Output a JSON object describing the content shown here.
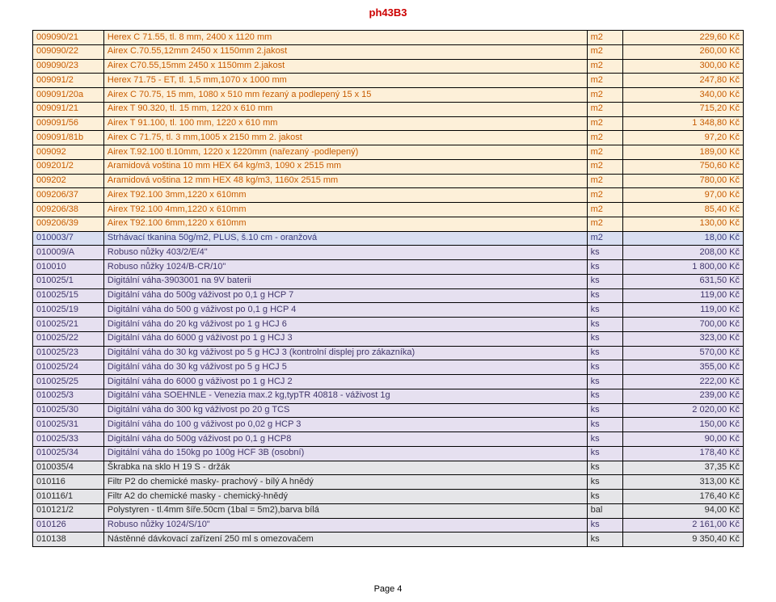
{
  "title": "ph43B3",
  "pageLabel": "Page 4",
  "columns": [
    "code",
    "desc",
    "unit",
    "price"
  ],
  "rowColorClasses": {
    "cream": "color-cream",
    "blue": "color-blue",
    "lav": "color-lav",
    "gray": "color-gray"
  },
  "rows": [
    {
      "color": "cream",
      "code": "009090/21",
      "desc": "Herex C 71.55, tl. 8 mm, 2400 x 1120 mm",
      "unit": "m2",
      "price": "229,60 Kč"
    },
    {
      "color": "cream",
      "code": "009090/22",
      "desc": "Airex C.70.55,12mm 2450 x 1150mm 2.jakost",
      "unit": "m2",
      "price": "260,00 Kč"
    },
    {
      "color": "cream",
      "code": "009090/23",
      "desc": "Airex C70.55,15mm 2450 x 1150mm 2.jakost",
      "unit": "m2",
      "price": "300,00 Kč"
    },
    {
      "color": "cream",
      "code": "009091/2",
      "desc": "Herex 71.75 - ET, tl. 1,5 mm,1070 x 1000 mm",
      "unit": "m2",
      "price": "247,80 Kč"
    },
    {
      "color": "cream",
      "code": "009091/20a",
      "desc": "Airex C 70.75, 15 mm, 1080 x 510 mm řezaný a podlepený 15 x 15",
      "unit": "m2",
      "price": "340,00 Kč"
    },
    {
      "color": "cream",
      "code": "009091/21",
      "desc": "Airex T 90.320, tl. 15 mm, 1220 x 610 mm",
      "unit": "m2",
      "price": "715,20 Kč"
    },
    {
      "color": "cream",
      "code": "009091/56",
      "desc": "Airex T 91.100, tl. 100 mm, 1220 x 610 mm",
      "unit": "m2",
      "price": "1 348,80 Kč"
    },
    {
      "color": "cream",
      "code": "009091/81b",
      "desc": "Airex C 71.75, tl. 3 mm,1005 x 2150 mm 2. jakost",
      "unit": "m2",
      "price": "97,20 Kč"
    },
    {
      "color": "cream",
      "code": "009092",
      "desc": "Airex T.92.100 tl.10mm, 1220 x 1220mm (nařezaný -podlepený)",
      "unit": "m2",
      "price": "189,00 Kč"
    },
    {
      "color": "cream",
      "code": "009201/2",
      "desc": "Aramidová voština 10 mm HEX 64 kg/m3, 1090 x 2515  mm",
      "unit": "m2",
      "price": "750,60 Kč"
    },
    {
      "color": "cream",
      "code": "009202",
      "desc": "Aramidová voština 12 mm HEX 48 kg/m3, 1160x 2515  mm",
      "unit": "m2",
      "price": "780,00 Kč"
    },
    {
      "color": "cream",
      "code": "009206/37",
      "desc": "Airex T92.100 3mm,1220 x 610mm",
      "unit": "m2",
      "price": "97,00 Kč"
    },
    {
      "color": "cream",
      "code": "009206/38",
      "desc": "Airex T92.100 4mm,1220 x 610mm",
      "unit": "m2",
      "price": "85,40 Kč"
    },
    {
      "color": "cream",
      "code": "009206/39",
      "desc": "Airex T92.100 6mm,1220 x 610mm",
      "unit": "m2",
      "price": "130,00 Kč"
    },
    {
      "color": "blue",
      "code": "010003/7",
      "desc": "Strhávací tkanina 50g/m2, PLUS, š.10 cm - oranžová",
      "unit": "m2",
      "price": "18,00 Kč"
    },
    {
      "color": "lav",
      "code": "010009/A",
      "desc": "Robuso nůžky 403/2/E/4\"",
      "unit": "ks",
      "price": "208,00 Kč"
    },
    {
      "color": "lav",
      "code": "010010",
      "desc": "Robuso nůžky 1024/B-CR/10\"",
      "unit": "ks",
      "price": "1 800,00 Kč"
    },
    {
      "color": "lav",
      "code": "010025/1",
      "desc": "Digitální váha-3903001 na  9V baterii",
      "unit": "ks",
      "price": "631,50 Kč"
    },
    {
      "color": "lav",
      "code": "010025/15",
      "desc": "Digitální váha  do 500g váživost po 0,1 g HCP 7",
      "unit": "ks",
      "price": "119,00 Kč"
    },
    {
      "color": "lav",
      "code": "010025/19",
      "desc": "Digitální váha do 500 g váživost po 0,1 g  HCP 4",
      "unit": "ks",
      "price": "119,00 Kč"
    },
    {
      "color": "lav",
      "code": "010025/21",
      "desc": "Digitální váha do 20 kg váživost po 1 g  HCJ 6",
      "unit": "ks",
      "price": "700,00 Kč"
    },
    {
      "color": "lav",
      "code": "010025/22",
      "desc": "Digitální váha do 6000 g váživost po 1 g  HCJ 3",
      "unit": "ks",
      "price": "323,00 Kč"
    },
    {
      "color": "lav",
      "code": "010025/23",
      "desc": "Digitální váha do 30 kg váživost po 5 g  HCJ 3 (kontrolní displej pro zákazníka)",
      "unit": "ks",
      "price": "570,00 Kč"
    },
    {
      "color": "lav",
      "code": "010025/24",
      "desc": "Digitální váha do 30 kg váživost po 5 g  HCJ 5",
      "unit": "ks",
      "price": "355,00 Kč"
    },
    {
      "color": "lav",
      "code": "010025/25",
      "desc": "Digitální váha do 6000 g váživost po 1 g  HCJ 2",
      "unit": "ks",
      "price": "222,00 Kč"
    },
    {
      "color": "lav",
      "code": "010025/3",
      "desc": "Digitální váha SOEHNLE - Venezia max.2 kg,typTR 40818 - váživost 1g",
      "unit": "ks",
      "price": "239,00 Kč"
    },
    {
      "color": "lav",
      "code": "010025/30",
      "desc": "Digitální váha do 300 kg váživost po 20 g  TCS",
      "unit": "ks",
      "price": "2 020,00 Kč"
    },
    {
      "color": "lav",
      "code": "010025/31",
      "desc": "Digitální váha do 100 g váživost po 0,02 g  HCP 3",
      "unit": "ks",
      "price": "150,00 Kč"
    },
    {
      "color": "lav",
      "code": "010025/33",
      "desc": "Digitální váha do  500g váživost po 0,1 g  HCP8",
      "unit": "ks",
      "price": "90,00 Kč"
    },
    {
      "color": "lav",
      "code": "010025/34",
      "desc": "Digitální váha do 150kg po 100g HCF 3B (osobní)",
      "unit": "ks",
      "price": "178,40 Kč"
    },
    {
      "color": "gray",
      "code": "010035/4",
      "desc": "Škrabka na sklo H 19 S - držák",
      "unit": "ks",
      "price": "37,35 Kč"
    },
    {
      "color": "gray",
      "code": "010116",
      "desc": "Filtr P2 do chemické masky- prachový - bílý A hnědý",
      "unit": "ks",
      "price": "313,00 Kč"
    },
    {
      "color": "gray",
      "code": "010116/1",
      "desc": "Filtr A2 do chemické masky - chemický-hnědý",
      "unit": "ks",
      "price": "176,40 Kč"
    },
    {
      "color": "gray",
      "code": "010121/2",
      "desc": "Polystyren - tl.4mm šíře.50cm (1bal = 5m2),barva bílá",
      "unit": "bal",
      "price": "94,00 Kč"
    },
    {
      "color": "lav",
      "code": "010126",
      "desc": "Robuso nůžky 1024/S/10\"",
      "unit": "ks",
      "price": "2 161,00 Kč"
    },
    {
      "color": "gray",
      "code": "010138",
      "desc": "Nástěnné dávkovací zařízení 250 ml s omezovačem",
      "unit": "ks",
      "price": "9 350,40 Kč"
    }
  ]
}
